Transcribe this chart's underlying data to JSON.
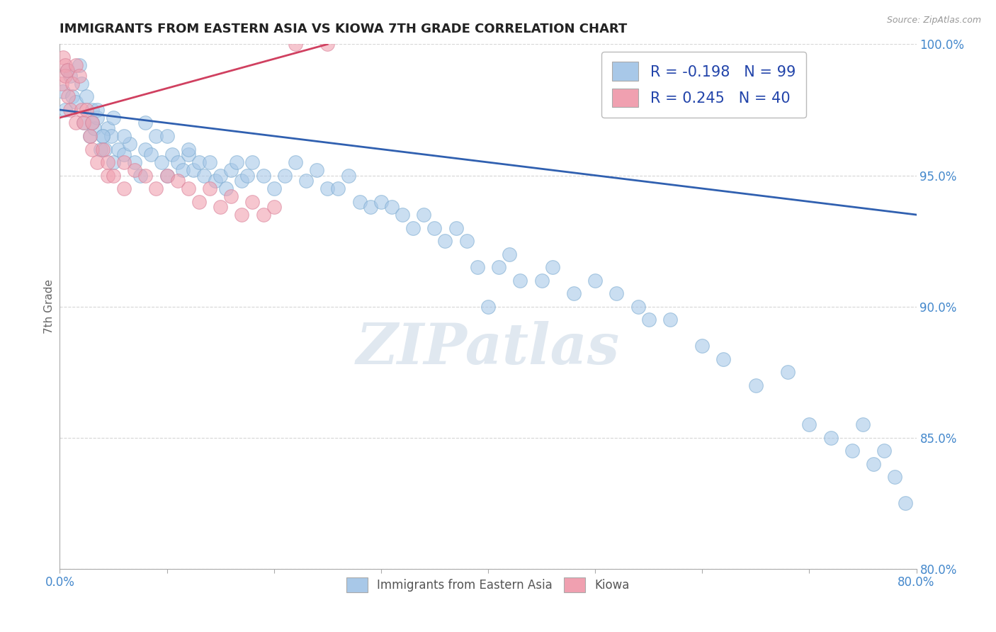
{
  "title": "IMMIGRANTS FROM EASTERN ASIA VS KIOWA 7TH GRADE CORRELATION CHART",
  "source_text": "Source: ZipAtlas.com",
  "ylabel": "7th Grade",
  "xlim": [
    0.0,
    80.0
  ],
  "ylim": [
    80.0,
    100.0
  ],
  "blue_color": "#a8c8e8",
  "pink_color": "#f0a0b0",
  "blue_edge_color": "#7aaad0",
  "pink_edge_color": "#d88098",
  "blue_line_color": "#3060b0",
  "pink_line_color": "#d04060",
  "legend_R_blue": "R = -0.198",
  "legend_N_blue": "N = 99",
  "legend_R_pink": "R = 0.245",
  "legend_N_pink": "N = 40",
  "watermark": "ZIPatlas",
  "blue_x": [
    0.3,
    0.5,
    0.7,
    1.0,
    1.2,
    1.5,
    1.8,
    2.0,
    2.2,
    2.5,
    2.8,
    3.0,
    3.2,
    3.5,
    3.8,
    4.0,
    4.2,
    4.5,
    4.8,
    5.0,
    5.5,
    6.0,
    6.5,
    7.0,
    7.5,
    8.0,
    8.5,
    9.0,
    9.5,
    10.0,
    10.5,
    11.0,
    11.5,
    12.0,
    12.5,
    13.0,
    13.5,
    14.0,
    14.5,
    15.0,
    15.5,
    16.0,
    16.5,
    17.0,
    17.5,
    18.0,
    19.0,
    20.0,
    21.0,
    22.0,
    23.0,
    24.0,
    25.0,
    26.0,
    27.0,
    28.0,
    29.0,
    30.0,
    31.0,
    32.0,
    33.0,
    34.0,
    35.0,
    36.0,
    37.0,
    38.0,
    39.0,
    40.0,
    41.0,
    42.0,
    43.0,
    45.0,
    46.0,
    48.0,
    50.0,
    52.0,
    54.0,
    55.0,
    57.0,
    60.0,
    62.0,
    65.0,
    68.0,
    70.0,
    72.0,
    74.0,
    75.0,
    76.0,
    77.0,
    78.0,
    79.0,
    3.0,
    3.5,
    4.0,
    5.0,
    6.0,
    8.0,
    10.0,
    12.0
  ],
  "blue_y": [
    98.2,
    97.5,
    99.0,
    98.8,
    98.0,
    97.8,
    99.2,
    98.5,
    97.0,
    98.0,
    96.5,
    97.5,
    96.8,
    97.2,
    96.0,
    96.5,
    96.0,
    96.8,
    96.5,
    95.5,
    96.0,
    95.8,
    96.2,
    95.5,
    95.0,
    96.0,
    95.8,
    96.5,
    95.5,
    95.0,
    95.8,
    95.5,
    95.2,
    95.8,
    95.2,
    95.5,
    95.0,
    95.5,
    94.8,
    95.0,
    94.5,
    95.2,
    95.5,
    94.8,
    95.0,
    95.5,
    95.0,
    94.5,
    95.0,
    95.5,
    94.8,
    95.2,
    94.5,
    94.5,
    95.0,
    94.0,
    93.8,
    94.0,
    93.8,
    93.5,
    93.0,
    93.5,
    93.0,
    92.5,
    93.0,
    92.5,
    91.5,
    90.0,
    91.5,
    92.0,
    91.0,
    91.0,
    91.5,
    90.5,
    91.0,
    90.5,
    90.0,
    89.5,
    89.5,
    88.5,
    88.0,
    87.0,
    87.5,
    85.5,
    85.0,
    84.5,
    85.5,
    84.0,
    84.5,
    83.5,
    82.5,
    97.0,
    97.5,
    96.5,
    97.2,
    96.5,
    97.0,
    96.5,
    96.0
  ],
  "pink_x": [
    0.2,
    0.3,
    0.5,
    0.5,
    0.7,
    0.8,
    1.0,
    1.2,
    1.5,
    1.5,
    1.8,
    2.0,
    2.2,
    2.5,
    2.8,
    3.0,
    3.0,
    3.5,
    4.0,
    4.5,
    4.5,
    5.0,
    6.0,
    6.0,
    7.0,
    8.0,
    9.0,
    10.0,
    11.0,
    12.0,
    13.0,
    14.0,
    15.0,
    16.0,
    17.0,
    18.0,
    19.0,
    20.0,
    22.0,
    25.0
  ],
  "pink_y": [
    98.5,
    99.5,
    99.2,
    98.8,
    99.0,
    98.0,
    97.5,
    98.5,
    99.2,
    97.0,
    98.8,
    97.5,
    97.0,
    97.5,
    96.5,
    97.0,
    96.0,
    95.5,
    96.0,
    95.5,
    95.0,
    95.0,
    95.5,
    94.5,
    95.2,
    95.0,
    94.5,
    95.0,
    94.8,
    94.5,
    94.0,
    94.5,
    93.8,
    94.2,
    93.5,
    94.0,
    93.5,
    93.8,
    100.0,
    100.0
  ],
  "blue_line_x": [
    0.0,
    80.0
  ],
  "blue_line_y": [
    97.5,
    93.5
  ],
  "pink_line_x": [
    0.0,
    25.0
  ],
  "pink_line_y": [
    97.2,
    100.0
  ]
}
